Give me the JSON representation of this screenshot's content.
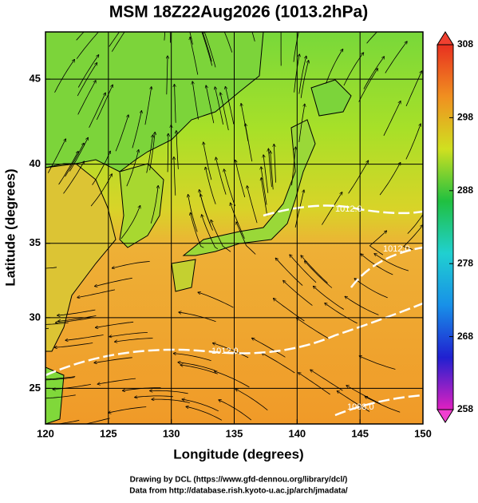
{
  "chart_data": {
    "type": "map",
    "title": "MSM 18Z22Aug2026 (1013.2hPa)",
    "xlabel": "Longitude (degrees)",
    "ylabel": "Latitude  (degrees)",
    "xlim": [
      120,
      150
    ],
    "xticks": [
      120,
      125,
      130,
      135,
      140,
      145,
      150
    ],
    "ylim": [
      22.4,
      47.6
    ],
    "yticks": [
      25,
      30,
      35,
      40,
      45
    ],
    "grid": true,
    "annotations": [
      "1012.0",
      "1012.0",
      "1012.0",
      "1008.0"
    ],
    "colorbar": {
      "lim": [
        258,
        308
      ],
      "ticks": [
        258,
        268,
        278,
        288,
        298,
        308
      ],
      "colors": [
        "#e020c0",
        "#2020d0",
        "#1890e8",
        "#20d0d0",
        "#20c040",
        "#d0e020",
        "#f09020",
        "#e83020"
      ]
    },
    "credits": [
      "Drawing by DCL (https://www.gfd-dennou.org/library/dcl/)",
      "Data from http://database.rish.kyoto-u.ac.jp/arch/jmadata/"
    ]
  }
}
